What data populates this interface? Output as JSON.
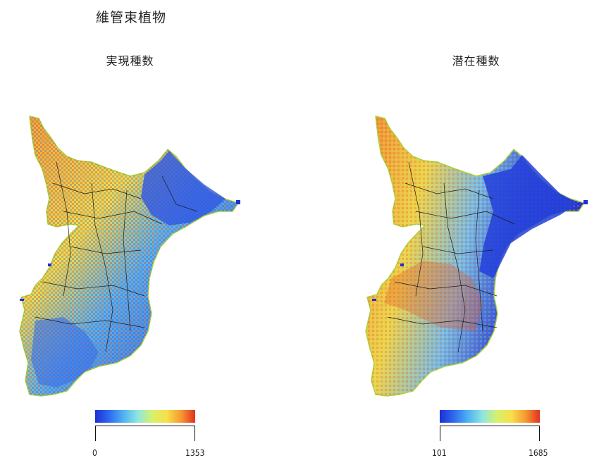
{
  "title": "維管束植物",
  "panels": [
    {
      "title": "実現種数",
      "scale_min": "0",
      "scale_max": "1353",
      "gradient_colors": [
        "#1d2fd6",
        "#2f6bef",
        "#4fb3f2",
        "#8ee6e0",
        "#d7f16a",
        "#f7e04b",
        "#f59a33",
        "#e3301d"
      ]
    },
    {
      "title": "潜在種数",
      "scale_min": "101",
      "scale_max": "1685",
      "gradient_colors": [
        "#1d2fd6",
        "#2f6bef",
        "#4fb3f2",
        "#8ee6e0",
        "#d7f16a",
        "#f7e04b",
        "#f59a33",
        "#e3301d"
      ]
    }
  ],
  "colors": {
    "coast_outline": "#a9d13a",
    "boundary_lines": "#1a1a1a",
    "low": "#1d2fd6",
    "high": "#e3301d"
  }
}
